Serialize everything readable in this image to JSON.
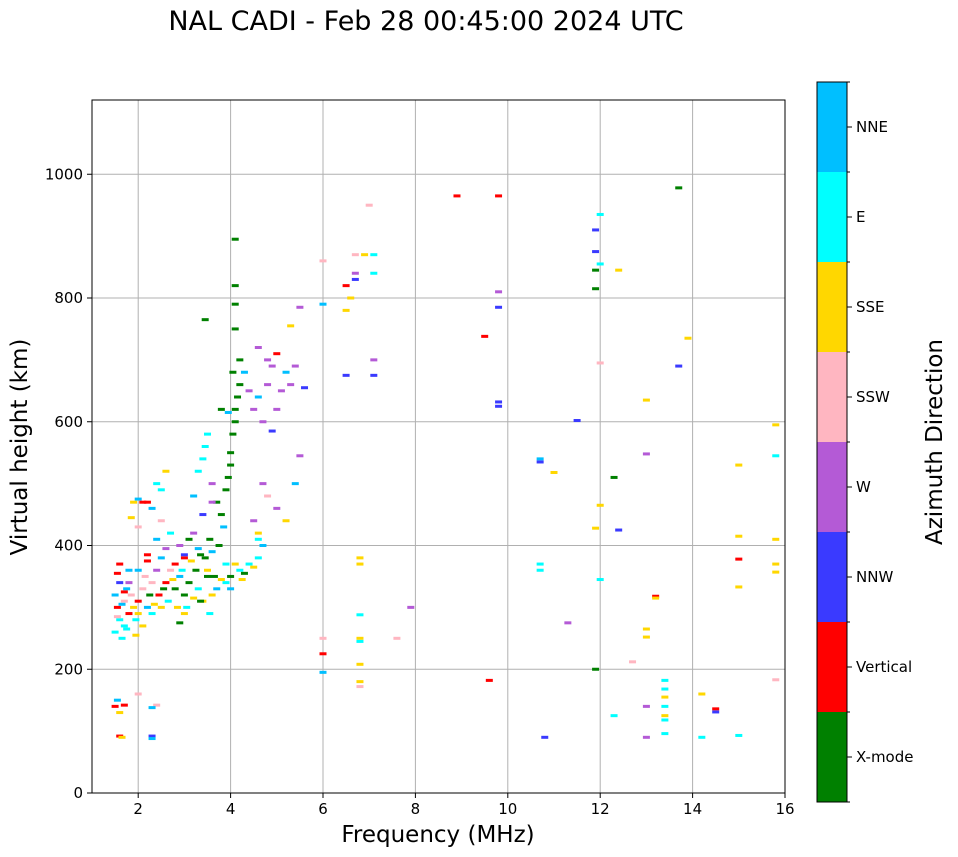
{
  "chart_data": {
    "type": "scatter",
    "title": "NAL CADI - Feb 28 00:45:00 2024 UTC",
    "xlabel": "Frequency (MHz)",
    "ylabel": "Virtual height (km)",
    "xlim": [
      1.0,
      16.0
    ],
    "ylim": [
      0,
      1120
    ],
    "xticks": [
      2,
      4,
      6,
      8,
      10,
      12,
      14,
      16
    ],
    "yticks": [
      0,
      200,
      400,
      600,
      800,
      1000
    ],
    "grid": true,
    "colorbar": {
      "label": "Azimuth Direction",
      "categories": [
        {
          "name": "X-mode",
          "color": "#008000"
        },
        {
          "name": "Vertical",
          "color": "#ff0000"
        },
        {
          "name": "NNW",
          "color": "#3a3aff"
        },
        {
          "name": "W",
          "color": "#b45ad6"
        },
        {
          "name": "SSW",
          "color": "#ffb6c1"
        },
        {
          "name": "SSE",
          "color": "#ffd700"
        },
        {
          "name": "E",
          "color": "#00ffff"
        },
        {
          "name": "NNE",
          "color": "#00bfff"
        }
      ]
    },
    "points": [
      [
        1.5,
        320,
        "NNE"
      ],
      [
        1.55,
        300,
        "Vertical"
      ],
      [
        1.6,
        280,
        "E"
      ],
      [
        1.5,
        260,
        "E"
      ],
      [
        1.6,
        340,
        "NNW"
      ],
      [
        1.7,
        310,
        "SSW"
      ],
      [
        1.8,
        290,
        "Vertical"
      ],
      [
        1.75,
        330,
        "NNE"
      ],
      [
        1.65,
        250,
        "E"
      ],
      [
        1.9,
        300,
        "SSE"
      ],
      [
        1.55,
        355,
        "Vertical"
      ],
      [
        1.6,
        370,
        "Vertical"
      ],
      [
        1.7,
        270,
        "E"
      ],
      [
        1.85,
        320,
        "SSW"
      ],
      [
        1.8,
        360,
        "NNE"
      ],
      [
        2.0,
        310,
        "Vertical"
      ],
      [
        2.0,
        290,
        "SSE"
      ],
      [
        2.1,
        330,
        "SSW"
      ],
      [
        2.15,
        350,
        "SSW"
      ],
      [
        2.2,
        300,
        "NNE"
      ],
      [
        2.2,
        375,
        "Vertical"
      ],
      [
        2.3,
        340,
        "SSW"
      ],
      [
        2.3,
        290,
        "E"
      ],
      [
        2.4,
        360,
        "W"
      ],
      [
        2.45,
        320,
        "Vertical"
      ],
      [
        2.5,
        300,
        "SSE"
      ],
      [
        2.5,
        380,
        "NNE"
      ],
      [
        2.6,
        340,
        "Vertical"
      ],
      [
        2.65,
        310,
        "E"
      ],
      [
        2.7,
        360,
        "SSW"
      ],
      [
        2.8,
        330,
        "X-mode"
      ],
      [
        2.85,
        300,
        "SSE"
      ],
      [
        2.9,
        350,
        "NNE"
      ],
      [
        3.0,
        320,
        "X-mode"
      ],
      [
        3.0,
        380,
        "Vertical"
      ],
      [
        3.05,
        300,
        "E"
      ],
      [
        3.1,
        340,
        "X-mode"
      ],
      [
        3.2,
        315,
        "SSE"
      ],
      [
        3.25,
        360,
        "X-mode"
      ],
      [
        3.3,
        330,
        "E"
      ],
      [
        3.4,
        310,
        "SSE"
      ],
      [
        3.45,
        380,
        "X-mode"
      ],
      [
        3.5,
        350,
        "X-mode"
      ],
      [
        3.6,
        320,
        "SSE"
      ],
      [
        3.7,
        330,
        "NNE"
      ],
      [
        3.75,
        400,
        "X-mode"
      ],
      [
        3.8,
        345,
        "SSE"
      ],
      [
        3.9,
        340,
        "E"
      ],
      [
        4.0,
        350,
        "X-mode"
      ],
      [
        4.0,
        330,
        "NNE"
      ],
      [
        4.1,
        370,
        "SSE"
      ],
      [
        4.2,
        360,
        "E"
      ],
      [
        4.3,
        355,
        "X-mode"
      ],
      [
        4.4,
        370,
        "E"
      ],
      [
        4.5,
        365,
        "SSE"
      ],
      [
        4.6,
        380,
        "E"
      ],
      [
        4.6,
        410,
        "E"
      ],
      [
        4.7,
        400,
        "NNE"
      ],
      [
        3.55,
        410,
        "X-mode"
      ],
      [
        3.6,
        390,
        "NNE"
      ],
      [
        3.3,
        395,
        "NNE"
      ],
      [
        3.1,
        410,
        "X-mode"
      ],
      [
        2.9,
        400,
        "W"
      ],
      [
        2.7,
        420,
        "E"
      ],
      [
        2.5,
        440,
        "SSW"
      ],
      [
        2.3,
        460,
        "NNE"
      ],
      [
        2.2,
        470,
        "Vertical"
      ],
      [
        2.0,
        430,
        "SSW"
      ],
      [
        2.4,
        500,
        "E"
      ],
      [
        2.5,
        490,
        "E"
      ],
      [
        2.6,
        520,
        "SSE"
      ],
      [
        3.2,
        480,
        "NNE"
      ],
      [
        3.3,
        520,
        "E"
      ],
      [
        3.4,
        540,
        "E"
      ],
      [
        3.45,
        560,
        "E"
      ],
      [
        3.5,
        580,
        "E"
      ],
      [
        3.6,
        500,
        "W"
      ],
      [
        3.7,
        470,
        "X-mode"
      ],
      [
        3.8,
        450,
        "X-mode"
      ],
      [
        3.85,
        430,
        "NNE"
      ],
      [
        3.9,
        490,
        "X-mode"
      ],
      [
        3.95,
        510,
        "X-mode"
      ],
      [
        4.0,
        530,
        "X-mode"
      ],
      [
        4.0,
        550,
        "X-mode"
      ],
      [
        4.05,
        580,
        "X-mode"
      ],
      [
        4.1,
        600,
        "X-mode"
      ],
      [
        4.1,
        620,
        "X-mode"
      ],
      [
        4.15,
        640,
        "X-mode"
      ],
      [
        4.2,
        660,
        "X-mode"
      ],
      [
        4.05,
        680,
        "X-mode"
      ],
      [
        3.95,
        615,
        "NNE"
      ],
      [
        3.8,
        620,
        "X-mode"
      ],
      [
        4.2,
        700,
        "X-mode"
      ],
      [
        4.1,
        750,
        "X-mode"
      ],
      [
        4.1,
        790,
        "X-mode"
      ],
      [
        4.1,
        820,
        "X-mode"
      ],
      [
        4.1,
        895,
        "X-mode"
      ],
      [
        3.45,
        765,
        "X-mode"
      ],
      [
        4.3,
        680,
        "NNE"
      ],
      [
        4.4,
        650,
        "W"
      ],
      [
        4.5,
        620,
        "W"
      ],
      [
        4.6,
        640,
        "NNE"
      ],
      [
        4.7,
        600,
        "W"
      ],
      [
        4.8,
        660,
        "W"
      ],
      [
        4.9,
        690,
        "W"
      ],
      [
        5.0,
        620,
        "W"
      ],
      [
        5.1,
        650,
        "W"
      ],
      [
        5.2,
        680,
        "NNE"
      ],
      [
        5.3,
        660,
        "W"
      ],
      [
        5.4,
        690,
        "W"
      ],
      [
        4.6,
        720,
        "W"
      ],
      [
        4.8,
        700,
        "W"
      ],
      [
        5.0,
        710,
        "Vertical"
      ],
      [
        5.3,
        755,
        "SSE"
      ],
      [
        5.5,
        785,
        "W"
      ],
      [
        4.7,
        500,
        "W"
      ],
      [
        4.8,
        480,
        "SSW"
      ],
      [
        5.0,
        460,
        "W"
      ],
      [
        5.2,
        440,
        "SSE"
      ],
      [
        5.4,
        500,
        "NNE"
      ],
      [
        4.5,
        440,
        "W"
      ],
      [
        4.6,
        420,
        "SSE"
      ],
      [
        5.5,
        545,
        "W"
      ],
      [
        5.6,
        655,
        "NNW"
      ],
      [
        4.9,
        585,
        "NNW"
      ],
      [
        6.0,
        860,
        "SSW"
      ],
      [
        6.0,
        790,
        "NNE"
      ],
      [
        6.5,
        780,
        "SSE"
      ],
      [
        6.5,
        820,
        "Vertical"
      ],
      [
        6.6,
        800,
        "SSE"
      ],
      [
        6.7,
        830,
        "NNW"
      ],
      [
        6.7,
        840,
        "W"
      ],
      [
        6.7,
        870,
        "SSW"
      ],
      [
        6.9,
        870,
        "SSE"
      ],
      [
        7.1,
        870,
        "E"
      ],
      [
        7.1,
        840,
        "E"
      ],
      [
        7.0,
        950,
        "SSW"
      ],
      [
        6.5,
        675,
        "NNW"
      ],
      [
        7.1,
        700,
        "W"
      ],
      [
        7.1,
        675,
        "NNW"
      ],
      [
        6.8,
        380,
        "SSE"
      ],
      [
        6.8,
        370,
        "SSE"
      ],
      [
        6.8,
        288,
        "E"
      ],
      [
        6.8,
        250,
        "SSE"
      ],
      [
        6.8,
        245,
        "E"
      ],
      [
        6.8,
        208,
        "SSE"
      ],
      [
        6.8,
        180,
        "SSE"
      ],
      [
        6.8,
        172,
        "SSW"
      ],
      [
        6.0,
        250,
        "SSW"
      ],
      [
        6.0,
        225,
        "Vertical"
      ],
      [
        6.0,
        195,
        "NNE"
      ],
      [
        7.9,
        300,
        "W"
      ],
      [
        7.6,
        250,
        "SSW"
      ],
      [
        8.9,
        965,
        "Vertical"
      ],
      [
        9.8,
        965,
        "Vertical"
      ],
      [
        9.5,
        738,
        "Vertical"
      ],
      [
        9.8,
        810,
        "W"
      ],
      [
        9.8,
        785,
        "NNW"
      ],
      [
        9.8,
        632,
        "NNW"
      ],
      [
        9.8,
        625,
        "NNW"
      ],
      [
        9.6,
        182,
        "Vertical"
      ],
      [
        10.7,
        540,
        "NNE"
      ],
      [
        10.7,
        535,
        "NNW"
      ],
      [
        11.0,
        518,
        "SSE"
      ],
      [
        10.7,
        370,
        "E"
      ],
      [
        10.7,
        360,
        "E"
      ],
      [
        11.3,
        275,
        "W"
      ],
      [
        10.8,
        90,
        "NNW"
      ],
      [
        11.5,
        602,
        "NNW"
      ],
      [
        11.9,
        910,
        "NNW"
      ],
      [
        11.9,
        875,
        "NNW"
      ],
      [
        11.9,
        845,
        "X-mode"
      ],
      [
        11.9,
        815,
        "X-mode"
      ],
      [
        12.0,
        935,
        "E"
      ],
      [
        12.0,
        855,
        "E"
      ],
      [
        12.4,
        845,
        "SSE"
      ],
      [
        12.0,
        695,
        "SSW"
      ],
      [
        12.0,
        465,
        "SSE"
      ],
      [
        11.9,
        428,
        "SSE"
      ],
      [
        12.0,
        345,
        "E"
      ],
      [
        11.9,
        200,
        "X-mode"
      ],
      [
        12.3,
        510,
        "X-mode"
      ],
      [
        12.4,
        425,
        "NNW"
      ],
      [
        12.3,
        125,
        "E"
      ],
      [
        12.7,
        212,
        "SSW"
      ],
      [
        13.0,
        635,
        "SSE"
      ],
      [
        13.0,
        548,
        "W"
      ],
      [
        13.0,
        265,
        "SSE"
      ],
      [
        13.0,
        252,
        "SSE"
      ],
      [
        13.0,
        140,
        "W"
      ],
      [
        13.0,
        90,
        "W"
      ],
      [
        13.2,
        318,
        "Vertical"
      ],
      [
        13.2,
        315,
        "SSE"
      ],
      [
        13.4,
        182,
        "E"
      ],
      [
        13.4,
        168,
        "E"
      ],
      [
        13.4,
        155,
        "SSE"
      ],
      [
        13.4,
        140,
        "E"
      ],
      [
        13.4,
        125,
        "SSE"
      ],
      [
        13.4,
        118,
        "E"
      ],
      [
        13.4,
        96,
        "E"
      ],
      [
        13.7,
        978,
        "X-mode"
      ],
      [
        13.7,
        690,
        "NNW"
      ],
      [
        13.9,
        735,
        "SSE"
      ],
      [
        14.2,
        160,
        "SSE"
      ],
      [
        14.5,
        136,
        "Vertical"
      ],
      [
        14.5,
        131,
        "NNW"
      ],
      [
        14.2,
        90,
        "E"
      ],
      [
        15.0,
        530,
        "SSE"
      ],
      [
        15.0,
        415,
        "SSE"
      ],
      [
        15.0,
        378,
        "Vertical"
      ],
      [
        15.0,
        333,
        "SSE"
      ],
      [
        15.0,
        93,
        "E"
      ],
      [
        15.8,
        595,
        "SSE"
      ],
      [
        15.8,
        545,
        "E"
      ],
      [
        15.8,
        410,
        "SSE"
      ],
      [
        15.8,
        370,
        "SSE"
      ],
      [
        15.8,
        357,
        "SSE"
      ],
      [
        15.8,
        183,
        "SSW"
      ],
      [
        1.5,
        140,
        "Vertical"
      ],
      [
        1.55,
        150,
        "NNE"
      ],
      [
        1.6,
        130,
        "SSE"
      ],
      [
        1.7,
        142,
        "Vertical"
      ],
      [
        2.0,
        160,
        "SSW"
      ],
      [
        2.4,
        142,
        "SSW"
      ],
      [
        2.3,
        138,
        "NNE"
      ],
      [
        1.6,
        92,
        "Vertical"
      ],
      [
        1.65,
        90,
        "SSE"
      ],
      [
        2.3,
        92,
        "NNW"
      ],
      [
        2.3,
        88,
        "NNE"
      ],
      [
        1.9,
        470,
        "SSE"
      ],
      [
        1.85,
        445,
        "SSE"
      ],
      [
        2.0,
        475,
        "NNE"
      ],
      [
        2.1,
        470,
        "Vertical"
      ],
      [
        3.0,
        290,
        "SSE"
      ],
      [
        2.9,
        275,
        "X-mode"
      ],
      [
        3.55,
        290,
        "E"
      ],
      [
        3.35,
        310,
        "X-mode"
      ],
      [
        2.1,
        270,
        "SSE"
      ],
      [
        1.95,
        255,
        "SSE"
      ],
      [
        3.6,
        470,
        "W"
      ],
      [
        3.4,
        450,
        "NNW"
      ],
      [
        3.2,
        420,
        "W"
      ],
      [
        3.0,
        385,
        "NNW"
      ],
      [
        2.8,
        370,
        "Vertical"
      ],
      [
        2.6,
        395,
        "W"
      ],
      [
        2.4,
        410,
        "NNE"
      ],
      [
        2.2,
        385,
        "Vertical"
      ],
      [
        2.0,
        360,
        "NNE"
      ],
      [
        1.8,
        340,
        "W"
      ],
      [
        1.7,
        325,
        "Vertical"
      ],
      [
        1.65,
        305,
        "NNE"
      ],
      [
        1.55,
        285,
        "SSW"
      ],
      [
        1.75,
        265,
        "E"
      ],
      [
        1.95,
        280,
        "E"
      ],
      [
        2.25,
        320,
        "X-mode"
      ],
      [
        2.35,
        305,
        "SSE"
      ],
      [
        2.55,
        330,
        "X-mode"
      ],
      [
        2.75,
        345,
        "SSE"
      ],
      [
        2.95,
        360,
        "E"
      ],
      [
        3.15,
        375,
        "SSE"
      ],
      [
        3.35,
        385,
        "X-mode"
      ],
      [
        3.5,
        360,
        "SSE"
      ],
      [
        3.65,
        350,
        "X-mode"
      ],
      [
        3.9,
        370,
        "E"
      ],
      [
        4.25,
        345,
        "SSE"
      ]
    ]
  }
}
